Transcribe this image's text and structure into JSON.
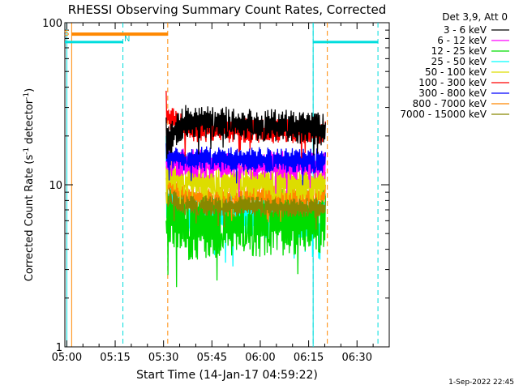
{
  "chart_data": {
    "type": "line",
    "title": "RHESSI Observing Summary Count Rates, Corrected",
    "xlabel": "Start Time (14-Jan-17 04:59:22)",
    "ylabel": "Corrected Count Rate (s",
    "ylabel_sup1": "-1",
    "ylabel_mid": " detector",
    "ylabel_sup2": "-1",
    "ylabel_end": ")",
    "y_scale": "log",
    "ylim": [
      1,
      100
    ],
    "xlim_minutes_after_0500": [
      -0.6,
      100
    ],
    "x_ticks": [
      {
        "m": 0,
        "label": "05:00"
      },
      {
        "m": 15,
        "label": "05:15"
      },
      {
        "m": 30,
        "label": "05:30"
      },
      {
        "m": 45,
        "label": "05:45"
      },
      {
        "m": 60,
        "label": "06:00"
      },
      {
        "m": 75,
        "label": "06:15"
      },
      {
        "m": 90,
        "label": "06:30"
      }
    ],
    "y_ticks": [
      {
        "v": 1,
        "label": "1"
      },
      {
        "v": 10,
        "label": "10"
      },
      {
        "v": 100,
        "label": "100"
      }
    ],
    "legend_title": "Det 3,9, Att 0",
    "legend_placement": "right",
    "series": [
      {
        "name": "3 - 6 keV",
        "color": "#000000",
        "start": 26,
        "y0": 18,
        "y_mid": 25,
        "y_end": 22,
        "jitter": 0.16
      },
      {
        "name": "6 - 12 keV",
        "color": "#ff00ff",
        "start": 14,
        "y0": 14,
        "y_mid": 13.5,
        "y_end": 13,
        "jitter": 0.14
      },
      {
        "name": "12 - 25 keV",
        "color": "#00dd00",
        "start": 6,
        "y0": 7,
        "y_mid": 5.5,
        "y_end": 6,
        "jitter": 0.32
      },
      {
        "name": "25 - 50 keV",
        "color": "#00ffff",
        "start": 20,
        "y0": 8,
        "y_mid": 6.5,
        "y_end": 6.5,
        "jitter": 0.22
      },
      {
        "name": "50 - 100 keV",
        "color": "#dddd00",
        "start": 13,
        "y0": 12,
        "y_mid": 10.5,
        "y_end": 10,
        "jitter": 0.16
      },
      {
        "name": "100 - 300 keV",
        "color": "#ff0000",
        "start": 38,
        "y0": 27,
        "y_mid": 22,
        "y_end": 21,
        "jitter": 0.12
      },
      {
        "name": "300 - 800 keV",
        "color": "#0000ff",
        "start": 18,
        "y0": 15,
        "y_mid": 14.5,
        "y_end": 14,
        "jitter": 0.12
      },
      {
        "name": "800 - 7000 keV",
        "color": "#ff8800",
        "start": 11,
        "y0": 10.5,
        "y_mid": 8.5,
        "y_end": 8.5,
        "jitter": 0.12
      },
      {
        "name": "7000 - 15000 keV",
        "color": "#888800",
        "start": 9,
        "y0": 8.5,
        "y_mid": 7.5,
        "y_end": 7.2,
        "jitter": 0.1
      }
    ],
    "data_interval_minutes": [
      30.8,
      80.2
    ],
    "annotations": {
      "orange_markers_at": [
        1.5,
        31.3,
        80.8
      ],
      "cyan_markers_at": [
        17.4,
        76.4,
        96.5
      ],
      "cyan_solid_at": [
        0,
        76.4
      ],
      "orange_top_bar": {
        "from": 1.5,
        "to": 31.3,
        "level": 85
      },
      "cyan_top_bars": [
        {
          "from": -0.6,
          "to": 17.4,
          "level": 76
        },
        {
          "from": 76.4,
          "to": 96.5,
          "level": 76
        }
      ],
      "s_label": "S",
      "n_label": "N"
    }
  },
  "timestamp": "1-Sep-2022 22:45"
}
